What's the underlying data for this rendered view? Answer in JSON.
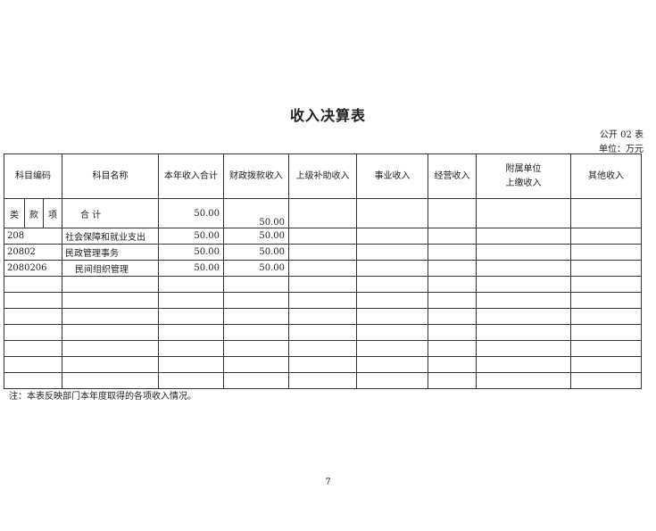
{
  "title": "收入决算表",
  "form_no": "公开 02 表",
  "unit": "单位：万元",
  "headers": {
    "code": "科目编码",
    "name": "科目名称",
    "total": "本年收入合计",
    "fiscal": "财政拨款收入",
    "superior": "上级补助收入",
    "business": "事业收入",
    "operating": "经营收入",
    "affiliated_1": "附属单位",
    "affiliated_2": "上缴收入",
    "other": "其他收入"
  },
  "sub_headers": {
    "lei": "类",
    "kuan": "款",
    "xiang": "项",
    "sum_label": "合 计",
    "total": "50.00",
    "fiscal": "50.00"
  },
  "rows": [
    {
      "code": "208",
      "name": "社会保障和就业支出",
      "total": "50.00",
      "fiscal": "50.00"
    },
    {
      "code": "20802",
      "name": "民政管理事务",
      "total": "50.00",
      "fiscal": "50.00"
    },
    {
      "code": "2080206",
      "name": "民间组织管理",
      "total": "50.00",
      "fiscal": "50.00"
    }
  ],
  "note": "注：本表反映部门本年度取得的各项收入情况。",
  "page_number": "7"
}
